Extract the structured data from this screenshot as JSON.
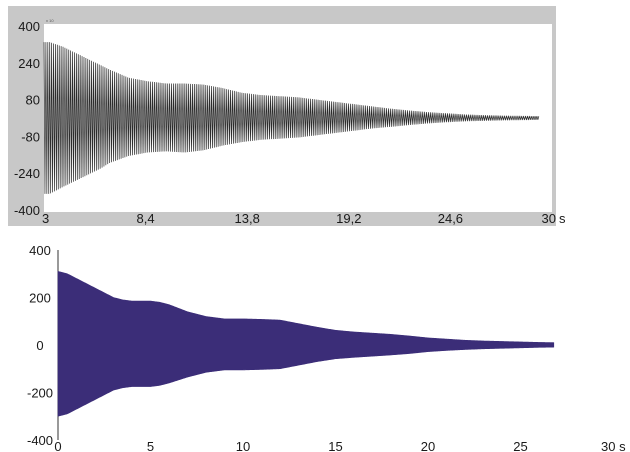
{
  "chart_data": [
    {
      "type": "line",
      "panel": "top",
      "title": "",
      "xlabel": "",
      "ylabel": "",
      "xlim": [
        3,
        30
      ],
      "ylim": [
        -400,
        400
      ],
      "x_unit": "s",
      "x_ticks": [
        3,
        8.4,
        13.8,
        19.2,
        24.6,
        30
      ],
      "x_tick_labels": [
        "3",
        "8,4",
        "13,8",
        "19,2",
        "24,6",
        "30"
      ],
      "x_unit_label": "s",
      "y_ticks": [
        400,
        240,
        80,
        -80,
        -240,
        -400
      ],
      "y_tick_labels": [
        "400",
        "240",
        "80",
        "-80",
        "-240",
        "-400"
      ],
      "corner_label": "x 10",
      "grid": false,
      "legend": "none",
      "colors": {
        "signal": "#2b2b2b",
        "frame": "#c8c8c8",
        "plot_bg": "#ffffff"
      },
      "series": [
        {
          "kind": "oscillation_envelope",
          "x": [
            3.0,
            3.3,
            4.0,
            5.0,
            6.0,
            6.5,
            7.5,
            8.5,
            9.5,
            10.5,
            11.5,
            12.5,
            13.5,
            14.5,
            15.5,
            16.5,
            17.5,
            18.5,
            19.5,
            20.5,
            21.5,
            22.5,
            23.5,
            24.5,
            25.5,
            26.5,
            27.5,
            28.5,
            29.3
          ],
          "upper": [
            330,
            330,
            310,
            270,
            230,
            210,
            175,
            160,
            150,
            150,
            145,
            130,
            110,
            100,
            95,
            90,
            80,
            70,
            60,
            50,
            40,
            32,
            25,
            20,
            15,
            12,
            10,
            9,
            8
          ],
          "lower": [
            -330,
            -330,
            -300,
            -260,
            -220,
            -195,
            -165,
            -150,
            -145,
            -150,
            -140,
            -120,
            -105,
            -95,
            -90,
            -85,
            -75,
            -65,
            -55,
            -45,
            -38,
            -30,
            -23,
            -18,
            -14,
            -12,
            -10,
            -9,
            -8
          ]
        }
      ]
    },
    {
      "type": "line",
      "panel": "bottom",
      "title": "",
      "xlabel": "",
      "ylabel": "",
      "xlim": [
        0,
        30
      ],
      "ylim": [
        -400,
        400
      ],
      "x_unit": "s",
      "x_ticks": [
        0,
        5,
        10,
        15,
        20,
        25,
        30
      ],
      "x_tick_labels": [
        "0",
        "5",
        "10",
        "15",
        "20",
        "25",
        "30 s"
      ],
      "y_ticks": [
        400,
        200,
        0,
        -200,
        -400
      ],
      "y_tick_labels": [
        "400",
        "200",
        "0",
        "-200",
        "-400"
      ],
      "grid": false,
      "legend": "none",
      "colors": {
        "signal": "#3b2d78",
        "axis": "#333333"
      },
      "series": [
        {
          "kind": "oscillation_envelope",
          "x": [
            0,
            0.5,
            1,
            1.5,
            2,
            2.5,
            3,
            3.5,
            4,
            4.5,
            5,
            5.5,
            6,
            7,
            8,
            9,
            10,
            11,
            12,
            13,
            14,
            15,
            16,
            17,
            18,
            19,
            20,
            21,
            22,
            23,
            24,
            25,
            26,
            26.8
          ],
          "upper": [
            310,
            300,
            280,
            260,
            240,
            220,
            200,
            190,
            185,
            185,
            185,
            180,
            170,
            140,
            120,
            110,
            110,
            108,
            105,
            90,
            75,
            62,
            55,
            50,
            45,
            38,
            30,
            25,
            20,
            17,
            15,
            13,
            11,
            10
          ],
          "lower": [
            -300,
            -290,
            -270,
            -250,
            -230,
            -210,
            -190,
            -180,
            -175,
            -175,
            -175,
            -170,
            -160,
            -135,
            -115,
            -105,
            -105,
            -103,
            -100,
            -85,
            -70,
            -58,
            -52,
            -47,
            -42,
            -36,
            -28,
            -23,
            -19,
            -16,
            -14,
            -12,
            -10,
            -9
          ]
        }
      ]
    }
  ]
}
